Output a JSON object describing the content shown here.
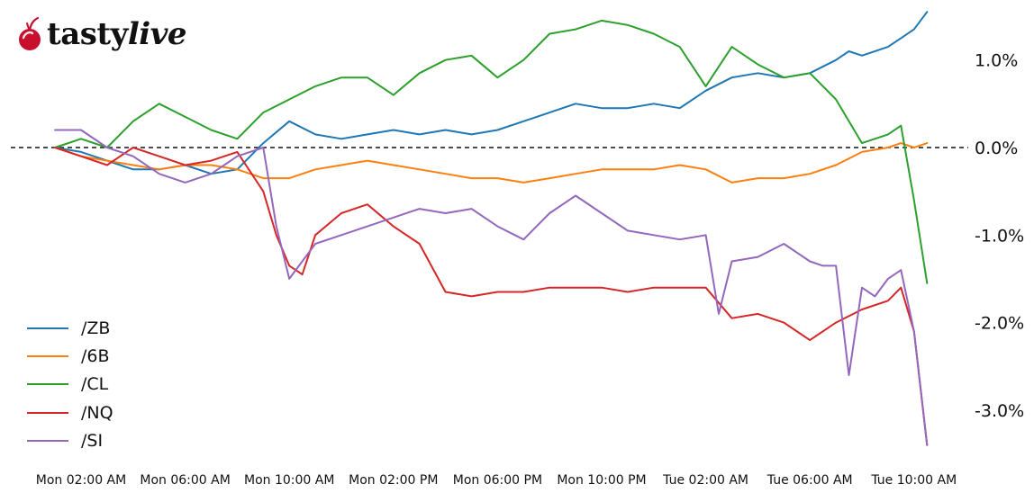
{
  "logo": {
    "text_a": "tasty",
    "text_b": "live",
    "icon": "cherry-icon"
  },
  "chart_data": {
    "type": "line",
    "title": "",
    "xlabel": "",
    "ylabel": "",
    "x_tick_labels": [
      "Mon 02:00 AM",
      "Mon 06:00 AM",
      "Mon 10:00 AM",
      "Mon 02:00 PM",
      "Mon 06:00 PM",
      "Mon 10:00 PM",
      "Tue 02:00 AM",
      "Tue 06:00 AM",
      "Tue 10:00 AM"
    ],
    "x_hours": [
      0,
      4,
      8,
      12,
      16,
      20,
      24,
      28,
      32
    ],
    "x_unit": "hours from Mon 02:00 AM",
    "xlim": [
      0,
      32.6
    ],
    "ylim": [
      -3.45,
      1.65
    ],
    "y_ticks": [
      1.0,
      0.0,
      -1.0,
      -2.0,
      -3.0
    ],
    "y_tick_labels": [
      "1.0%",
      "0.0%",
      "-1.0%",
      "-2.0%",
      "-3.0%"
    ],
    "y_axis_side": "right",
    "zero_line": "dashed",
    "grid": false,
    "legend_position": "lower-left",
    "series": [
      {
        "name": "/ZB",
        "color": "#1f77b4",
        "x": [
          -1,
          0,
          1,
          2,
          3,
          4,
          5,
          6,
          7,
          8,
          9,
          10,
          11,
          12,
          13,
          14,
          15,
          16,
          17,
          18,
          19,
          20,
          21,
          22,
          23,
          24,
          25,
          26,
          27,
          28,
          29,
          29.5,
          30,
          31,
          31.5,
          32,
          32.5
        ],
        "y": [
          0.0,
          -0.05,
          -0.15,
          -0.25,
          -0.25,
          -0.2,
          -0.3,
          -0.25,
          0.05,
          0.3,
          0.15,
          0.1,
          0.15,
          0.2,
          0.15,
          0.2,
          0.15,
          0.2,
          0.3,
          0.4,
          0.5,
          0.45,
          0.45,
          0.5,
          0.45,
          0.65,
          0.8,
          0.85,
          0.8,
          0.85,
          1.0,
          1.1,
          1.05,
          1.15,
          1.25,
          1.35,
          1.55
        ]
      },
      {
        "name": "/6B",
        "color": "#ff7f0e",
        "x": [
          -1,
          0,
          1,
          2,
          3,
          4,
          5,
          6,
          7,
          8,
          9,
          10,
          11,
          12,
          13,
          14,
          15,
          16,
          17,
          18,
          19,
          20,
          21,
          22,
          23,
          24,
          25,
          26,
          27,
          28,
          29,
          30,
          31,
          31.5,
          32,
          32.5
        ],
        "y": [
          0.0,
          -0.1,
          -0.15,
          -0.2,
          -0.25,
          -0.2,
          -0.2,
          -0.25,
          -0.35,
          -0.35,
          -0.25,
          -0.2,
          -0.15,
          -0.2,
          -0.25,
          -0.3,
          -0.35,
          -0.35,
          -0.4,
          -0.35,
          -0.3,
          -0.25,
          -0.25,
          -0.25,
          -0.2,
          -0.25,
          -0.4,
          -0.35,
          -0.35,
          -0.3,
          -0.2,
          -0.05,
          0.0,
          0.05,
          0.0,
          0.05
        ]
      },
      {
        "name": "/CL",
        "color": "#2ca02c",
        "x": [
          -1,
          0,
          1,
          2,
          3,
          4,
          5,
          6,
          7,
          8,
          9,
          10,
          11,
          12,
          13,
          14,
          15,
          16,
          17,
          18,
          19,
          20,
          21,
          22,
          23,
          24,
          25,
          26,
          27,
          28,
          29,
          30,
          31,
          31.5,
          32,
          32.5
        ],
        "y": [
          0.0,
          0.1,
          0.0,
          0.3,
          0.5,
          0.35,
          0.2,
          0.1,
          0.4,
          0.55,
          0.7,
          0.8,
          0.8,
          0.6,
          0.85,
          1.0,
          1.05,
          0.8,
          1.0,
          1.3,
          1.35,
          1.45,
          1.4,
          1.3,
          1.15,
          0.7,
          1.15,
          0.95,
          0.8,
          0.85,
          0.55,
          0.05,
          0.15,
          0.25,
          -0.6,
          -1.55
        ]
      },
      {
        "name": "/NQ",
        "color": "#d62728",
        "x": [
          -1,
          0,
          1,
          2,
          3,
          4,
          5,
          6,
          7,
          7.5,
          8,
          8.5,
          9,
          10,
          11,
          12,
          13,
          14,
          15,
          16,
          17,
          18,
          19,
          20,
          21,
          22,
          23,
          24,
          25,
          26,
          27,
          28,
          29,
          30,
          31,
          31.5,
          32,
          32.5
        ],
        "y": [
          0.0,
          -0.1,
          -0.2,
          0.0,
          -0.1,
          -0.2,
          -0.15,
          -0.05,
          -0.5,
          -1.0,
          -1.35,
          -1.45,
          -1.0,
          -0.75,
          -0.65,
          -0.9,
          -1.1,
          -1.65,
          -1.7,
          -1.65,
          -1.65,
          -1.6,
          -1.6,
          -1.6,
          -1.65,
          -1.6,
          -1.6,
          -1.6,
          -1.95,
          -1.9,
          -2.0,
          -2.2,
          -2.0,
          -1.85,
          -1.75,
          -1.6,
          -2.1,
          -3.4
        ]
      },
      {
        "name": "/SI",
        "color": "#9467bd",
        "x": [
          -1,
          0,
          1,
          2,
          3,
          4,
          5,
          6,
          7,
          7.5,
          8,
          8.5,
          9,
          10,
          11,
          12,
          13,
          14,
          15,
          16,
          17,
          18,
          19,
          20,
          21,
          22,
          23,
          24,
          24.5,
          25,
          26,
          27,
          28,
          28.5,
          29,
          29.5,
          30,
          30.5,
          31,
          31.5,
          32,
          32.5
        ],
        "y": [
          0.2,
          0.2,
          0.0,
          -0.1,
          -0.3,
          -0.4,
          -0.3,
          -0.1,
          0.0,
          -0.9,
          -1.5,
          -1.3,
          -1.1,
          -1.0,
          -0.9,
          -0.8,
          -0.7,
          -0.75,
          -0.7,
          -0.9,
          -1.05,
          -0.75,
          -0.55,
          -0.75,
          -0.95,
          -1.0,
          -1.05,
          -1.0,
          -1.9,
          -1.3,
          -1.25,
          -1.1,
          -1.3,
          -1.35,
          -1.35,
          -2.6,
          -1.6,
          -1.7,
          -1.5,
          -1.4,
          -2.1,
          -3.4
        ]
      }
    ]
  }
}
